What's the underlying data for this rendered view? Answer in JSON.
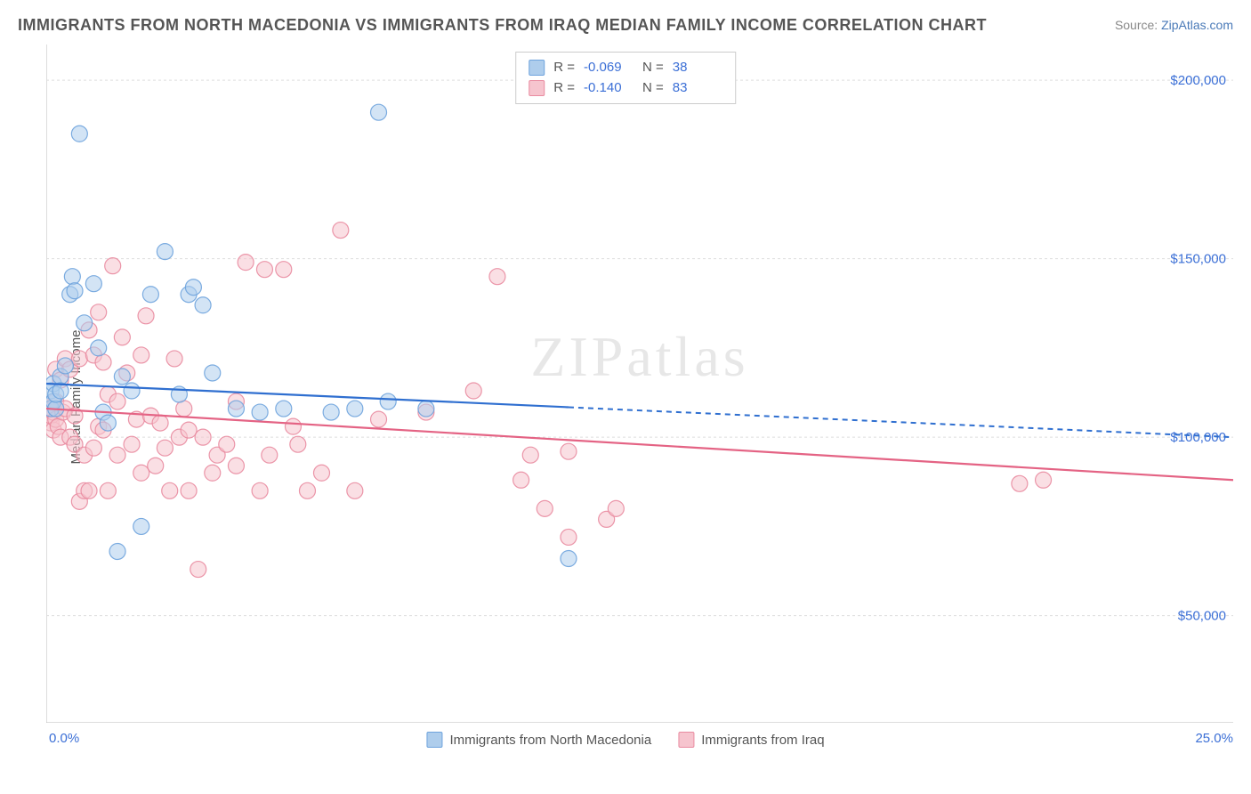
{
  "title": "IMMIGRANTS FROM NORTH MACEDONIA VS IMMIGRANTS FROM IRAQ MEDIAN FAMILY INCOME CORRELATION CHART",
  "source": {
    "label": "Source: ",
    "name": "ZipAtlas.com"
  },
  "watermark": "ZIPatlas",
  "yaxis": {
    "label": "Median Family Income"
  },
  "xaxis": {
    "min_label": "0.0%",
    "max_label": "25.0%",
    "min": 0,
    "max": 25
  },
  "ylim": {
    "min": 20000,
    "max": 210000
  },
  "gridlines_y": [
    50000,
    100000,
    150000,
    200000
  ],
  "ytick_labels": [
    "$50,000",
    "$100,000",
    "$150,000",
    "$200,000"
  ],
  "xticks": [
    0,
    2.08,
    4.17,
    6.25,
    8.33,
    10.42,
    12.5,
    14.58,
    16.67,
    18.75,
    20.83,
    22.92
  ],
  "colors": {
    "series_a_fill": "#aecdec",
    "series_a_stroke": "#6ea3dd",
    "series_b_fill": "#f6c4ce",
    "series_b_stroke": "#e98ba0",
    "trend_a": "#2f6fd0",
    "trend_b": "#e46384",
    "grid": "#dddddd",
    "axis": "#bbbbbb",
    "tick_label": "#3b6fd6",
    "text": "#555555"
  },
  "marker_radius": 9,
  "marker_opacity": 0.55,
  "legend_top": {
    "rows": [
      {
        "series": "a",
        "R_label": "R =",
        "R_value": "-0.069",
        "N_label": "N =",
        "N_value": "38"
      },
      {
        "series": "b",
        "R_label": "R =",
        "R_value": "-0.140",
        "N_label": "N =",
        "N_value": "83"
      }
    ]
  },
  "legend_bottom": {
    "items": [
      {
        "series": "a",
        "label": "Immigrants from North Macedonia"
      },
      {
        "series": "b",
        "label": "Immigrants from Iraq"
      }
    ]
  },
  "series_a": {
    "points": [
      [
        0.1,
        113000
      ],
      [
        0.1,
        108000
      ],
      [
        0.15,
        110000
      ],
      [
        0.15,
        115000
      ],
      [
        0.2,
        108000
      ],
      [
        0.2,
        112000
      ],
      [
        0.3,
        117000
      ],
      [
        0.3,
        113000
      ],
      [
        0.4,
        120000
      ],
      [
        0.5,
        140000
      ],
      [
        0.55,
        145000
      ],
      [
        0.6,
        141000
      ],
      [
        0.7,
        185000
      ],
      [
        0.8,
        132000
      ],
      [
        1.0,
        143000
      ],
      [
        1.1,
        125000
      ],
      [
        1.2,
        107000
      ],
      [
        1.3,
        104000
      ],
      [
        1.5,
        68000
      ],
      [
        1.6,
        117000
      ],
      [
        1.8,
        113000
      ],
      [
        2.0,
        75000
      ],
      [
        2.2,
        140000
      ],
      [
        2.5,
        152000
      ],
      [
        2.8,
        112000
      ],
      [
        3.0,
        140000
      ],
      [
        3.1,
        142000
      ],
      [
        3.3,
        137000
      ],
      [
        3.5,
        118000
      ],
      [
        4.0,
        108000
      ],
      [
        4.5,
        107000
      ],
      [
        5.0,
        108000
      ],
      [
        6.0,
        107000
      ],
      [
        6.5,
        108000
      ],
      [
        7.0,
        191000
      ],
      [
        7.2,
        110000
      ],
      [
        8.0,
        108000
      ],
      [
        11.0,
        66000
      ]
    ],
    "trend": {
      "y_at_xmin": 115000,
      "y_at_xmax": 100000,
      "solid_until_x": 11.0
    }
  },
  "series_b": {
    "points": [
      [
        0.1,
        104000
      ],
      [
        0.1,
        106000
      ],
      [
        0.1,
        108000
      ],
      [
        0.15,
        102000
      ],
      [
        0.15,
        107000
      ],
      [
        0.2,
        105000
      ],
      [
        0.2,
        110000
      ],
      [
        0.2,
        119000
      ],
      [
        0.25,
        103000
      ],
      [
        0.3,
        116000
      ],
      [
        0.3,
        100000
      ],
      [
        0.35,
        107000
      ],
      [
        0.4,
        108000
      ],
      [
        0.4,
        122000
      ],
      [
        0.5,
        119000
      ],
      [
        0.5,
        100000
      ],
      [
        0.6,
        98000
      ],
      [
        0.6,
        106000
      ],
      [
        0.7,
        82000
      ],
      [
        0.7,
        122000
      ],
      [
        0.8,
        95000
      ],
      [
        0.8,
        85000
      ],
      [
        0.9,
        85000
      ],
      [
        0.9,
        130000
      ],
      [
        1.0,
        123000
      ],
      [
        1.0,
        97000
      ],
      [
        1.1,
        135000
      ],
      [
        1.1,
        103000
      ],
      [
        1.2,
        121000
      ],
      [
        1.2,
        102000
      ],
      [
        1.3,
        85000
      ],
      [
        1.3,
        112000
      ],
      [
        1.4,
        148000
      ],
      [
        1.5,
        95000
      ],
      [
        1.5,
        110000
      ],
      [
        1.6,
        128000
      ],
      [
        1.7,
        118000
      ],
      [
        1.8,
        98000
      ],
      [
        1.9,
        105000
      ],
      [
        2.0,
        90000
      ],
      [
        2.0,
        123000
      ],
      [
        2.1,
        134000
      ],
      [
        2.2,
        106000
      ],
      [
        2.3,
        92000
      ],
      [
        2.4,
        104000
      ],
      [
        2.5,
        97000
      ],
      [
        2.6,
        85000
      ],
      [
        2.7,
        122000
      ],
      [
        2.8,
        100000
      ],
      [
        2.9,
        108000
      ],
      [
        3.0,
        102000
      ],
      [
        3.0,
        85000
      ],
      [
        3.2,
        63000
      ],
      [
        3.3,
        100000
      ],
      [
        3.5,
        90000
      ],
      [
        3.6,
        95000
      ],
      [
        3.8,
        98000
      ],
      [
        4.0,
        110000
      ],
      [
        4.0,
        92000
      ],
      [
        4.2,
        149000
      ],
      [
        4.5,
        85000
      ],
      [
        4.6,
        147000
      ],
      [
        4.7,
        95000
      ],
      [
        5.0,
        147000
      ],
      [
        5.2,
        103000
      ],
      [
        5.3,
        98000
      ],
      [
        5.5,
        85000
      ],
      [
        5.8,
        90000
      ],
      [
        6.2,
        158000
      ],
      [
        6.5,
        85000
      ],
      [
        7.0,
        105000
      ],
      [
        8.0,
        107000
      ],
      [
        9.0,
        113000
      ],
      [
        9.5,
        145000
      ],
      [
        10.0,
        88000
      ],
      [
        10.2,
        95000
      ],
      [
        10.5,
        80000
      ],
      [
        11.0,
        72000
      ],
      [
        11.0,
        96000
      ],
      [
        11.8,
        77000
      ],
      [
        12.0,
        80000
      ],
      [
        20.5,
        87000
      ],
      [
        21.0,
        88000
      ]
    ],
    "trend": {
      "y_at_xmin": 108000,
      "y_at_xmax": 88000,
      "solid_until_x": 25.0
    }
  }
}
